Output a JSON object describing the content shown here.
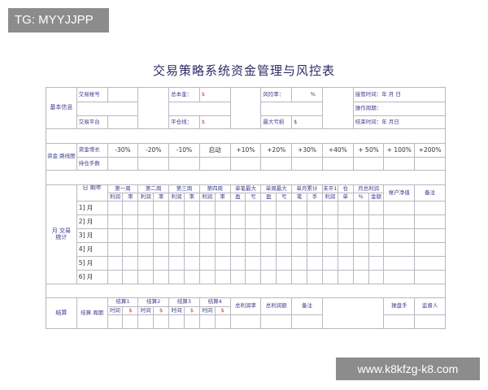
{
  "watermarks": {
    "top_left": "TG: MYYJJPP",
    "bottom_right": "www.k8kfzg-k8.com"
  },
  "title": "交易策略系统资金管理与风控表",
  "basic": {
    "section": "基本信息",
    "account": "交易帐号",
    "platform": "交易平台",
    "capital": "总本金：",
    "capital_unit": "$",
    "close_line": "平仓线：",
    "close_unit": "$",
    "risk": "风险率：",
    "risk_unit": "%",
    "max_loss": "最大亏损",
    "max_loss_unit": "$",
    "takeover": "接管时间：年  月  日",
    "period": "操作周期：",
    "end": "结束时间：年  月日"
  },
  "fund": {
    "section": "资金  路线图",
    "growth": "资金增长",
    "positions": "持仓手数",
    "steps": [
      "-30%",
      "-20%",
      "-10%",
      "启动",
      "+10%",
      "+20%",
      "+30%",
      "+40%",
      "+ 50%",
      "+ 100%",
      "+200%"
    ]
  },
  "monthly": {
    "section": "月  交易统计",
    "date_header": "日    期年",
    "groups": [
      "第一周",
      "第二周",
      "第三周",
      "第四周",
      "单笔最大",
      "单周最大",
      "单月累计",
      "未平1",
      "仓",
      "月总利润"
    ],
    "subs": [
      "利润",
      "率",
      "利润",
      "率",
      "利润",
      "率",
      "利润",
      "率",
      "盈",
      "亏",
      "盈",
      "亏",
      "笔",
      "手",
      "利润",
      "单",
      "%",
      "金额"
    ],
    "net_value": "帐户净值",
    "remarks": "备注",
    "months": [
      "1] 月",
      "2] 月",
      "3] 月",
      "4] 月",
      "5] 月",
      "6] 月"
    ]
  },
  "settle": {
    "section": "结算",
    "period": "结算  周期",
    "items": [
      "结算1",
      "结算2",
      "结算3",
      "结算4"
    ],
    "time": "时间",
    "unit": "$",
    "total_rate": "总利润率",
    "total_amount": "总利润额",
    "remarks": "备注",
    "trader": "操盘手",
    "supervisor": "监督人"
  }
}
